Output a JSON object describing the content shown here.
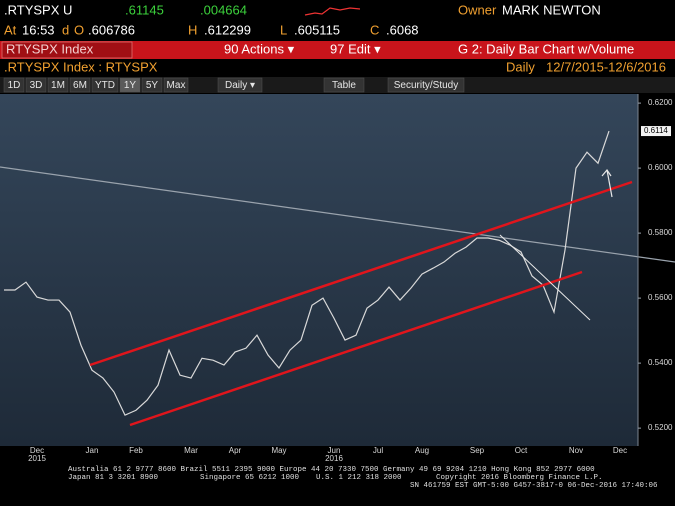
{
  "header": {
    "ticker": ".RTYSPX U",
    "last": ".61145",
    "change": ".004664",
    "owner_label": "Owner",
    "owner": "MARK NEWTON",
    "at_label": "At",
    "time": "16:53",
    "d": "d",
    "open_label": "O",
    "open": ".606786",
    "high_label": "H",
    "high": ".612299",
    "low_label": "L",
    "low": ".605115",
    "close_label": "C",
    "close": ".6068"
  },
  "menu": {
    "security": "RTYSPX Index",
    "actions": "90 Actions ▾",
    "edit": "97 Edit ▾",
    "function": "G 2: Daily Bar Chart w/Volume"
  },
  "subheader": {
    "left": ".RTYSPX Index : RTYSPX",
    "period": "Daily",
    "range": "12/7/2015-12/6/2016"
  },
  "toolbar": [
    "1D",
    "3D",
    "1M",
    "6M",
    "YTD",
    "1Y",
    "5Y",
    "Max",
    "Daily ▾",
    "Table",
    "Security/Study"
  ],
  "chart_data": {
    "type": "line",
    "categories": [
      null,
      null,
      null,
      "Dec",
      null,
      null,
      null,
      null,
      "Jan",
      null,
      null,
      null,
      "Feb",
      null,
      null,
      null,
      null,
      "Mar",
      null,
      null,
      null,
      "Apr",
      null,
      null,
      null,
      "May",
      null,
      null,
      null,
      null,
      "Jun",
      null,
      null,
      null,
      "Jul",
      null,
      null,
      null,
      "Aug",
      null,
      null,
      null,
      null,
      "Sep",
      null,
      null,
      null,
      "Oct",
      null,
      null,
      null,
      null,
      "Nov",
      null,
      null,
      null,
      "Dec"
    ],
    "years": [
      null,
      null,
      null,
      "2015",
      null,
      null,
      null,
      null,
      null,
      null,
      null,
      null,
      null,
      null,
      null,
      null,
      null,
      null,
      null,
      null,
      null,
      null,
      null,
      null,
      null,
      null,
      null,
      null,
      null,
      null,
      "2016",
      null,
      null,
      null,
      null,
      null,
      null,
      null,
      null,
      null,
      null,
      null,
      null,
      null,
      null,
      null,
      null,
      null,
      null,
      null,
      null,
      null,
      null,
      null,
      null,
      null,
      null
    ],
    "series": [
      {
        "name": "RTYSPX",
        "color": "#d9d9d9",
        "values": [
          0.5625,
          0.5625,
          0.5649,
          0.5603,
          0.5594,
          0.5594,
          0.5557,
          0.5455,
          0.5378,
          0.5354,
          0.5311,
          0.524,
          0.5255,
          0.5286,
          0.5332,
          0.544,
          0.5363,
          0.5354,
          0.5415,
          0.5409,
          0.5394,
          0.5434,
          0.5446,
          0.5486,
          0.5425,
          0.5385,
          0.544,
          0.5471,
          0.5578,
          0.56,
          0.5538,
          0.5471,
          0.5486,
          0.5569,
          0.5594,
          0.5634,
          0.5594,
          0.5631,
          0.5674,
          0.5692,
          0.5711,
          0.5738,
          0.5757,
          0.5785,
          0.5785,
          0.5778,
          0.5763,
          0.5742,
          0.5668,
          0.564,
          0.5557,
          0.5748,
          0.6,
          0.6049,
          0.6015,
          0.6114,
          null
        ]
      }
    ],
    "last_tag": 0.6114,
    "ylim": [
      0.5145,
      0.6228
    ],
    "yticks": [
      {
        "value": 0.52,
        "label": "0.5200"
      },
      {
        "value": 0.54,
        "label": "0.5400"
      },
      {
        "value": 0.56,
        "label": "0.5600"
      },
      {
        "value": 0.58,
        "label": "0.5800"
      },
      {
        "value": 0.6,
        "label": "0.6000"
      },
      {
        "value": 0.62,
        "label": "0.6200"
      }
    ],
    "y_axis_side": "right"
  },
  "footer": {
    "line1": "Australia 61 2 9777 8600 Brazil 5511 2395 9000 Europe 44 20 7330 7500 Germany 49 69 9204 1210 Hong Kong 852 2977 6000",
    "line2a": "Japan 81 3 3201 8900",
    "line2b": "Singapore 65 6212 1000",
    "line2c": "U.S. 1 212 318 2000",
    "line2d": "Copyright 2016 Bloomberg Finance L.P.",
    "line3": "SN 461759 EST  GMT-5:00 G457-3817-0 06-Dec-2016 17:40:06"
  }
}
